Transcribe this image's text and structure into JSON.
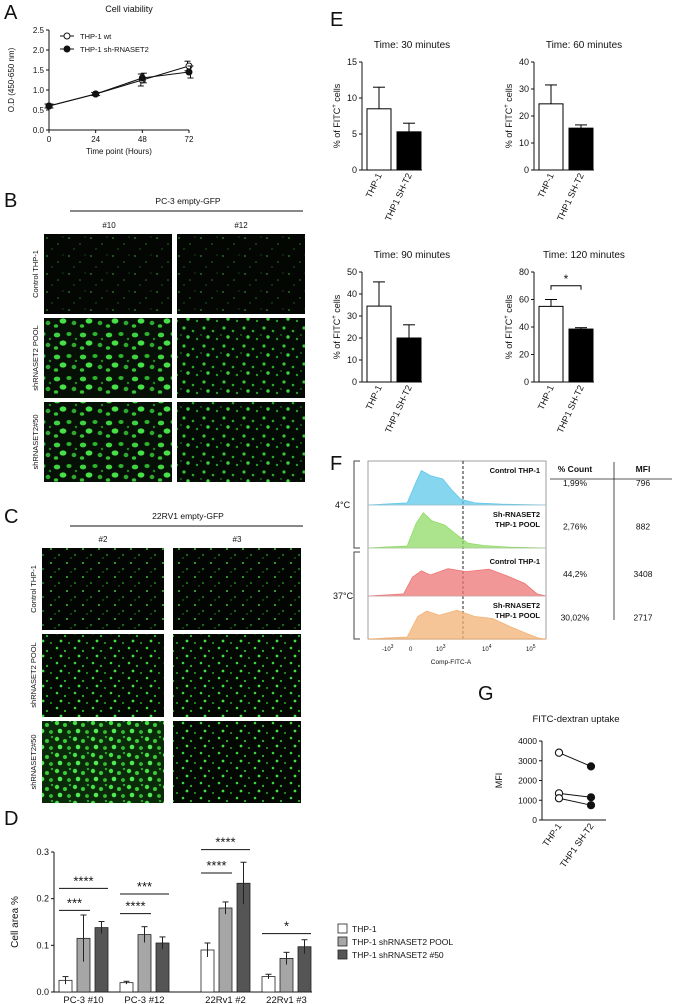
{
  "panel_letters": {
    "A": "A",
    "B": "B",
    "C": "C",
    "D": "D",
    "E": "E",
    "F": "F",
    "G": "G"
  },
  "micrographs": {
    "b_header": "PC-3 empty-GFP",
    "b_columns": [
      "#10",
      "#12"
    ],
    "b_rows": [
      "Control THP-1",
      "shRNASET2 POOL",
      "shRNASET2#50"
    ],
    "c_header": "22RV1 empty-GFP",
    "c_columns": [
      "#2",
      "#3"
    ],
    "c_rows": [
      "Control THP-1",
      "shRNASET2 POOL",
      "shRNASET2#50"
    ]
  },
  "flow": {
    "table_headers": [
      "% Count",
      "MFI"
    ],
    "rows": [
      {
        "temp": "4°C",
        "label": [
          "Control THP-1"
        ],
        "count": "1,99%",
        "mfi": "796",
        "color": "#5ec8ea"
      },
      {
        "temp": "4°C",
        "label": [
          "Sh-RNASET2",
          "THP-1 POOL"
        ],
        "count": "2,76%",
        "mfi": "882",
        "color": "#8fdb66"
      },
      {
        "temp": "37°C",
        "label": [
          "Control THP-1"
        ],
        "count": "44,2%",
        "mfi": "3408",
        "color": "#ee7474"
      },
      {
        "temp": "37°C",
        "label": [
          "Sh-RNASET2",
          "THP-1 POOL"
        ],
        "count": "30,02%",
        "mfi": "2717",
        "color": "#f2b276"
      }
    ],
    "temp_labels": [
      "4°C",
      "37°C"
    ],
    "xlabel": "Comp-FITC-A",
    "ticks": [
      "-10",
      "3",
      "0",
      "10",
      "3",
      "10",
      "4",
      "10",
      "5"
    ]
  },
  "chart_data": [
    {
      "id": "A",
      "type": "line",
      "title": "Cell viability",
      "xlabel": "Time point (Hours)",
      "ylabel": "O.D (450-650 nm)",
      "x": [
        0,
        24,
        48,
        72
      ],
      "xlim": [
        0,
        72
      ],
      "ylim": [
        0,
        2.5
      ],
      "yticks": [
        "0.0",
        "0.5",
        "1.0",
        "1.5",
        "2.0",
        "2.5"
      ],
      "xticks": [
        "0",
        "24",
        "48",
        "72"
      ],
      "series": [
        {
          "name": "THP-1 wt",
          "marker": "open",
          "values": [
            0.6,
            0.9,
            1.25,
            1.6
          ],
          "err": [
            0.05,
            0.04,
            0.15,
            0.12
          ]
        },
        {
          "name": "THP-1 sh-RNASET2",
          "marker": "filled",
          "values": [
            0.6,
            0.9,
            1.3,
            1.45
          ],
          "err": [
            0.05,
            0.04,
            0.12,
            0.15
          ]
        }
      ],
      "legend": "top-left"
    },
    {
      "id": "E1",
      "type": "bar",
      "title": "Time: 30 minutes",
      "ylabel": "% of FITC+ cells",
      "categories": [
        "THP-1",
        "THP1 SH-T2"
      ],
      "values": [
        8.5,
        5.3
      ],
      "err": [
        3,
        1.2
      ],
      "ylim": [
        0,
        15
      ],
      "yticks": [
        "0",
        "5",
        "10",
        "15"
      ]
    },
    {
      "id": "E2",
      "type": "bar",
      "title": "Time: 60 minutes",
      "ylabel": "% of FITC+ cells",
      "categories": [
        "THP-1",
        "THP1 SH-T2"
      ],
      "values": [
        24.5,
        15.5
      ],
      "err": [
        7,
        1.2
      ],
      "ylim": [
        0,
        40
      ],
      "yticks": [
        "0",
        "10",
        "20",
        "30",
        "40"
      ]
    },
    {
      "id": "E3",
      "type": "bar",
      "title": "Time: 90 minutes",
      "ylabel": "% of FITC+ cells",
      "categories": [
        "THP-1",
        "THP1 SH-T2"
      ],
      "values": [
        34.5,
        20
      ],
      "err": [
        11,
        6
      ],
      "ylim": [
        0,
        50
      ],
      "yticks": [
        "0",
        "10",
        "20",
        "30",
        "40",
        "50"
      ]
    },
    {
      "id": "E4",
      "type": "bar",
      "title": "Time: 120 minutes",
      "ylabel": "% of FITC+ cells",
      "categories": [
        "THP-1",
        "THP1 SH-T2"
      ],
      "values": [
        55,
        38.5
      ],
      "err": [
        5,
        1
      ],
      "ylim": [
        0,
        80
      ],
      "yticks": [
        "0",
        "20",
        "40",
        "60",
        "80"
      ],
      "significance": "*"
    },
    {
      "id": "G",
      "type": "scatter",
      "title": "FITC-dextran uptake",
      "ylabel": "MFI",
      "categories": [
        "THP-1",
        "THP1 SH-T2"
      ],
      "pairs": [
        [
          3408,
          2717
        ],
        [
          1350,
          1150
        ],
        [
          1100,
          750
        ]
      ],
      "ylim": [
        0,
        4000
      ],
      "yticks": [
        "0",
        "1000",
        "2000",
        "3000",
        "4000"
      ]
    },
    {
      "id": "D",
      "type": "bar",
      "ylabel": "Cell area %",
      "categories": [
        "PC-3 #10",
        "PC-3 #12",
        "22Rv1 #2",
        "22Rv1 #3"
      ],
      "ylim": [
        0,
        0.3
      ],
      "yticks": [
        "0.0",
        "0.1",
        "0.2",
        "0.3"
      ],
      "series": [
        {
          "name": "THP-1",
          "color": "#ffffff",
          "values": [
            0.025,
            0.02,
            0.09,
            0.033
          ],
          "err": [
            0.008,
            0.003,
            0.015,
            0.005
          ]
        },
        {
          "name": "THP-1 shRNASET2 POOL",
          "color": "#a6a6a6",
          "values": [
            0.115,
            0.123,
            0.18,
            0.072
          ],
          "err": [
            0.05,
            0.017,
            0.013,
            0.013
          ]
        },
        {
          "name": "THP-1 shRNASET2 #50",
          "color": "#555555",
          "values": [
            0.138,
            0.105,
            0.233,
            0.097
          ],
          "err": [
            0.013,
            0.013,
            0.045,
            0.015
          ]
        }
      ],
      "significance": [
        {
          "text": "***",
          "group": 0,
          "from": 0,
          "to": 1,
          "level": 0.175
        },
        {
          "text": "****",
          "group": 0,
          "from": 0,
          "to": 2,
          "level": 0.222
        },
        {
          "text": "****",
          "group": 1,
          "from": 0,
          "to": 1,
          "level": 0.168
        },
        {
          "text": "***",
          "group": 1,
          "from": 0,
          "to": 2,
          "level": 0.21
        },
        {
          "text": "****",
          "group": 2,
          "from": 0,
          "to": 1,
          "level": 0.255
        },
        {
          "text": "****",
          "group": 2,
          "from": 0,
          "to": 2,
          "level": 0.305
        },
        {
          "text": "*",
          "group": 3,
          "from": 0,
          "to": 2,
          "level": 0.125
        }
      ],
      "legend": "right"
    }
  ]
}
